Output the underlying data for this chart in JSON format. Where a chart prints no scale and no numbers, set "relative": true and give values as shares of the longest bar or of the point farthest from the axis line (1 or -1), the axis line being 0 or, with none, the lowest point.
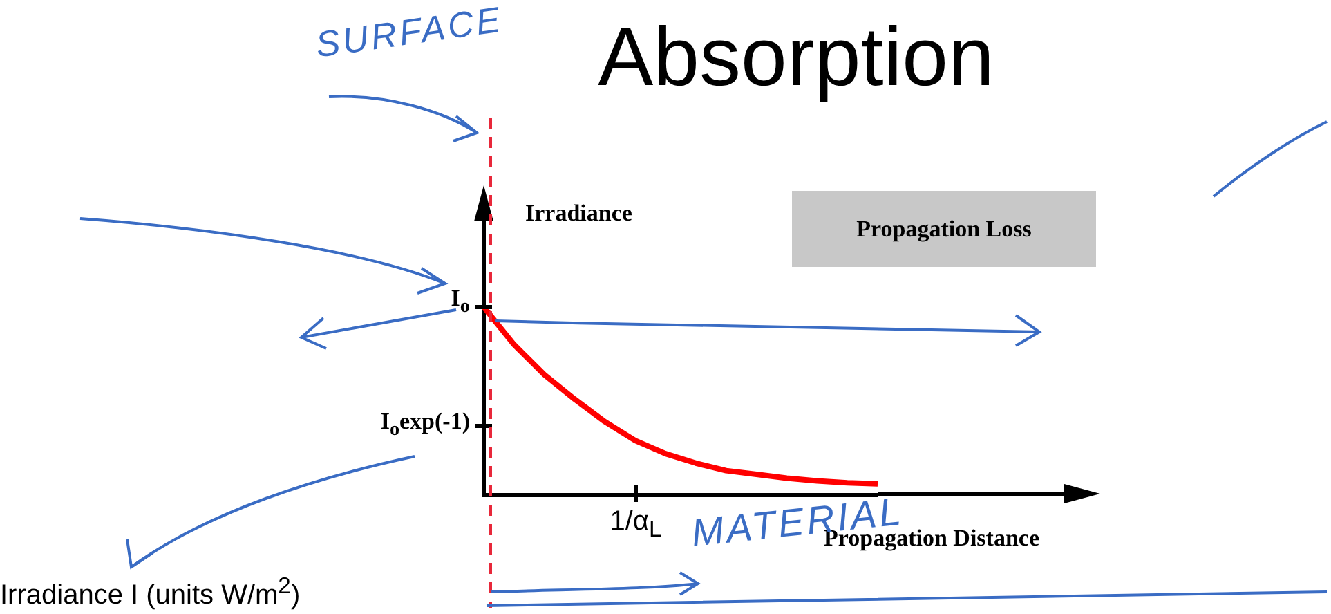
{
  "chart_data": {
    "type": "line",
    "title": "Absorption",
    "xlabel": "Propagation Distance",
    "ylabel": "Irradiance",
    "relative": true,
    "categories": [
      null,
      null,
      null,
      null,
      null,
      null,
      null,
      null,
      null,
      null,
      null,
      null,
      null,
      null
    ],
    "series": [
      {
        "color": "#ff0000",
        "values": [
          1,
          0.8,
          0.64,
          0.51,
          0.39,
          0.29,
          0.22,
          0.17,
          0.13,
          0.11,
          0.09,
          0.075,
          0.065,
          0.06
        ]
      }
    ],
    "annotations": [
      "Propagation Loss",
      "SURFACE",
      "MATERIAL",
      "Irradiance I (units W/m$^{2}$)",
      "I$_{o}$",
      "I$_{o}$exp(-1)",
      "1/α$_{L}$"
    ],
    "legend": false,
    "marker": "none",
    "line_style": "solid"
  }
}
